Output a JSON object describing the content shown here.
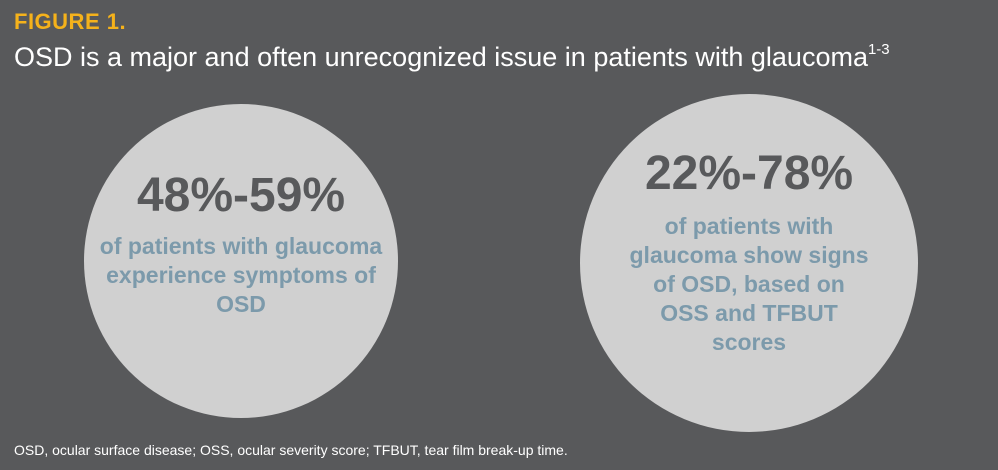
{
  "figure": {
    "label": "FIGURE 1.",
    "title": "OSD is a major and often unrecognized issue in patients with glaucoma",
    "title_superscript": "1-3"
  },
  "stats": [
    {
      "value": "48%-59%",
      "description": "of patients with glaucoma experience symptoms of OSD"
    },
    {
      "value": "22%-78%",
      "description": "of patients with glaucoma show signs of OSD, based on OSS and TFBUT scores"
    }
  ],
  "footnote": "OSD, ocular surface disease; OSS, ocular severity score; TFBUT, tear film break-up time.",
  "colors": {
    "background": "#58595b",
    "label": "#f5b21b",
    "circle": "#d0d0d0",
    "stat_value": "#58595b",
    "stat_description": "#7c9aab",
    "text": "#ffffff"
  }
}
